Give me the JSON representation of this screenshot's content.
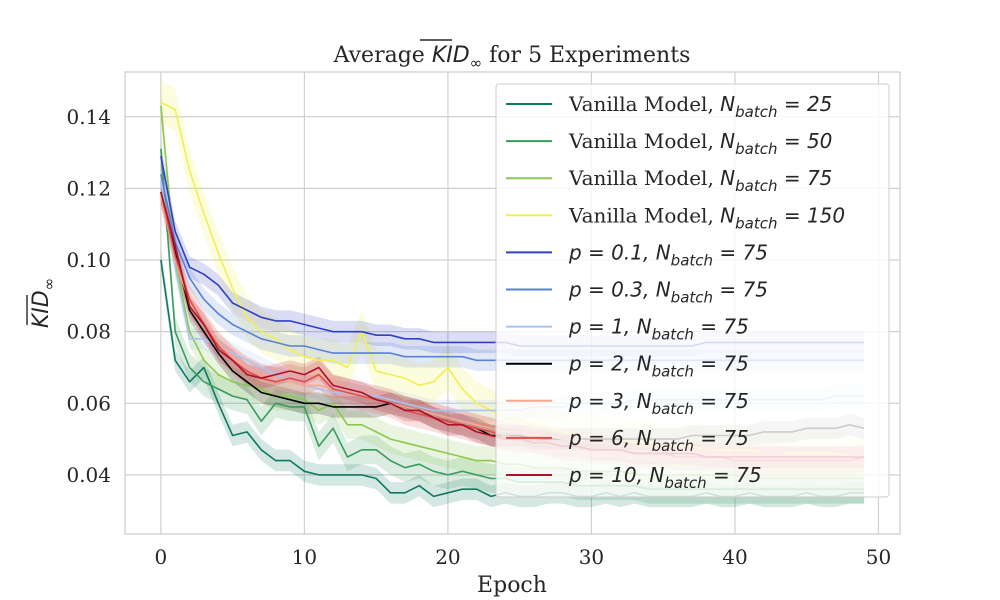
{
  "chart_data": {
    "type": "line",
    "title": {
      "prefix": "Average ",
      "symbol": "KID",
      "subscript": "∞",
      "suffix": " for 5 Experiments"
    },
    "xlabel": "Epoch",
    "ylabel": {
      "symbol": "KID",
      "subscript": "∞"
    },
    "xlim": [
      -2.5,
      51.5
    ],
    "ylim": [
      0.0235,
      0.1525
    ],
    "xticks": [
      0,
      10,
      20,
      30,
      40,
      50
    ],
    "yticks": [
      0.04,
      0.06,
      0.08,
      0.1,
      0.12,
      0.14
    ],
    "ytick_labels": [
      "0.04",
      "0.06",
      "0.08",
      "0.10",
      "0.12",
      "0.14"
    ],
    "grid": true,
    "legend_position": "top-right",
    "x": [
      0,
      1,
      2,
      3,
      4,
      5,
      6,
      7,
      8,
      9,
      10,
      11,
      12,
      13,
      14,
      15,
      16,
      17,
      18,
      19,
      20,
      21,
      22,
      23,
      24,
      25,
      26,
      27,
      28,
      29,
      30,
      31,
      32,
      33,
      34,
      35,
      36,
      37,
      38,
      39,
      40,
      41,
      42,
      43,
      44,
      45,
      46,
      47,
      48,
      49
    ],
    "series": [
      {
        "label": {
          "prefix": "Vanilla Model, ",
          "symbol": "N",
          "sub": "batch",
          "eq": " = 25"
        },
        "color": "#0f7a5c",
        "values": [
          0.1,
          0.072,
          0.066,
          0.07,
          0.06,
          0.051,
          0.052,
          0.047,
          0.044,
          0.044,
          0.041,
          0.04,
          0.04,
          0.04,
          0.04,
          0.039,
          0.035,
          0.035,
          0.037,
          0.034,
          0.035,
          0.036,
          0.036,
          0.034,
          0.035,
          0.034,
          0.034,
          0.035,
          0.035,
          0.034,
          0.034,
          0.035,
          0.034,
          0.035,
          0.034,
          0.034,
          0.034,
          0.034,
          0.035,
          0.034,
          0.034,
          0.035,
          0.034,
          0.034,
          0.034,
          0.035,
          0.034,
          0.034,
          0.035,
          0.035
        ],
        "band": 0.003
      },
      {
        "label": {
          "prefix": "Vanilla Model, ",
          "symbol": "N",
          "sub": "batch",
          "eq": " = 50"
        },
        "color": "#3a9c5a",
        "values": [
          0.131,
          0.08,
          0.07,
          0.066,
          0.064,
          0.062,
          0.061,
          0.055,
          0.06,
          0.059,
          0.059,
          0.048,
          0.053,
          0.045,
          0.047,
          0.047,
          0.044,
          0.042,
          0.043,
          0.041,
          0.04,
          0.041,
          0.04,
          0.039,
          0.039,
          0.038,
          0.038,
          0.038,
          0.038,
          0.037,
          0.037,
          0.037,
          0.037,
          0.037,
          0.036,
          0.036,
          0.036,
          0.036,
          0.036,
          0.036,
          0.036,
          0.036,
          0.036,
          0.036,
          0.036,
          0.036,
          0.036,
          0.036,
          0.036,
          0.036
        ],
        "band": 0.004
      },
      {
        "label": {
          "prefix": "Vanilla Model, ",
          "symbol": "N",
          "sub": "batch",
          "eq": " = 75"
        },
        "color": "#8cc850",
        "values": [
          0.143,
          0.1,
          0.08,
          0.072,
          0.068,
          0.066,
          0.065,
          0.064,
          0.062,
          0.062,
          0.061,
          0.058,
          0.06,
          0.054,
          0.054,
          0.052,
          0.05,
          0.049,
          0.048,
          0.047,
          0.046,
          0.045,
          0.044,
          0.044,
          0.043,
          0.043,
          0.042,
          0.042,
          0.042,
          0.041,
          0.041,
          0.041,
          0.041,
          0.04,
          0.04,
          0.04,
          0.04,
          0.04,
          0.04,
          0.04,
          0.04,
          0.039,
          0.039,
          0.039,
          0.039,
          0.039,
          0.039,
          0.039,
          0.039,
          0.039
        ],
        "band": 0.004
      },
      {
        "label": {
          "prefix": "Vanilla Model, ",
          "symbol": "N",
          "sub": "batch",
          "eq": " = 150"
        },
        "color": "#f0f050",
        "values": [
          0.144,
          0.142,
          0.125,
          0.113,
          0.102,
          0.092,
          0.084,
          0.08,
          0.078,
          0.075,
          0.073,
          0.072,
          0.072,
          0.07,
          0.08,
          0.069,
          0.068,
          0.067,
          0.065,
          0.066,
          0.07,
          0.064,
          0.06,
          0.058,
          0.056,
          0.055,
          0.054,
          0.053,
          0.052,
          0.051,
          0.051,
          0.05,
          0.05,
          0.049,
          0.049,
          0.048,
          0.048,
          0.048,
          0.047,
          0.047,
          0.047,
          0.047,
          0.046,
          0.046,
          0.046,
          0.046,
          0.046,
          0.046,
          0.045,
          0.045
        ],
        "band": 0.006
      },
      {
        "label": {
          "prefix": "",
          "symbol": "p",
          "sub": "",
          "eq": " = 0.1, ",
          "symbol2": "N",
          "sub2": "batch",
          "eq2": " = 75"
        },
        "color": "#3040c0",
        "values": [
          0.129,
          0.108,
          0.098,
          0.096,
          0.093,
          0.088,
          0.086,
          0.084,
          0.083,
          0.083,
          0.082,
          0.081,
          0.08,
          0.08,
          0.08,
          0.079,
          0.079,
          0.078,
          0.078,
          0.077,
          0.077,
          0.077,
          0.077,
          0.077,
          0.077,
          0.076,
          0.076,
          0.076,
          0.076,
          0.076,
          0.076,
          0.076,
          0.076,
          0.076,
          0.076,
          0.076,
          0.076,
          0.076,
          0.077,
          0.077,
          0.077,
          0.077,
          0.077,
          0.077,
          0.077,
          0.077,
          0.077,
          0.077,
          0.077,
          0.077
        ],
        "band": 0.003
      },
      {
        "label": {
          "prefix": "",
          "symbol": "p",
          "sub": "",
          "eq": " = 0.3, ",
          "symbol2": "N",
          "sub2": "batch",
          "eq2": " = 75"
        },
        "color": "#5a80d8",
        "values": [
          0.124,
          0.105,
          0.095,
          0.089,
          0.085,
          0.082,
          0.08,
          0.078,
          0.077,
          0.076,
          0.076,
          0.075,
          0.074,
          0.074,
          0.074,
          0.074,
          0.074,
          0.073,
          0.073,
          0.073,
          0.073,
          0.073,
          0.072,
          0.072,
          0.072,
          0.072,
          0.072,
          0.072,
          0.072,
          0.072,
          0.072,
          0.072,
          0.072,
          0.072,
          0.072,
          0.072,
          0.072,
          0.072,
          0.072,
          0.072,
          0.072,
          0.072,
          0.072,
          0.072,
          0.072,
          0.072,
          0.072,
          0.072,
          0.072,
          0.072
        ],
        "band": 0.003
      },
      {
        "label": {
          "prefix": "",
          "symbol": "p",
          "sub": "",
          "eq": " = 1, ",
          "symbol2": "N",
          "sub2": "batch",
          "eq2": " = 75"
        },
        "color": "#a8c4ef",
        "values": [
          0.122,
          0.098,
          0.078,
          0.078,
          0.076,
          0.074,
          0.072,
          0.07,
          0.068,
          0.066,
          0.065,
          0.064,
          0.063,
          0.063,
          0.062,
          0.062,
          0.061,
          0.06,
          0.059,
          0.058,
          0.058,
          0.058,
          0.058,
          0.058,
          0.058,
          0.058,
          0.059,
          0.059,
          0.059,
          0.06,
          0.06,
          0.06,
          0.06,
          0.061,
          0.061,
          0.061,
          0.061,
          0.061,
          0.061,
          0.061,
          0.061,
          0.061,
          0.061,
          0.061,
          0.061,
          0.061,
          0.061,
          0.062,
          0.062,
          0.062
        ],
        "band": 0.003
      },
      {
        "label": {
          "prefix": "",
          "symbol": "p",
          "sub": "",
          "eq": " = 2, ",
          "symbol2": "N",
          "sub2": "batch",
          "eq2": " = 75"
        },
        "color": "#000000",
        "values": [
          0.119,
          0.102,
          0.086,
          0.08,
          0.074,
          0.069,
          0.066,
          0.063,
          0.062,
          0.061,
          0.06,
          0.06,
          0.059,
          0.059,
          0.059,
          0.059,
          0.06,
          0.059,
          0.058,
          0.056,
          0.055,
          0.054,
          0.053,
          0.051,
          0.051,
          0.051,
          0.05,
          0.05,
          0.05,
          0.05,
          0.05,
          0.05,
          0.05,
          0.05,
          0.05,
          0.05,
          0.05,
          0.051,
          0.051,
          0.051,
          0.051,
          0.051,
          0.052,
          0.052,
          0.052,
          0.053,
          0.053,
          0.053,
          0.054,
          0.053
        ],
        "band": 0.003
      },
      {
        "label": {
          "prefix": "",
          "symbol": "p",
          "sub": "",
          "eq": " = 3, ",
          "symbol2": "N",
          "sub2": "batch",
          "eq2": " = 75"
        },
        "color": "#f4a890",
        "values": [
          0.118,
          0.1,
          0.088,
          0.082,
          0.077,
          0.073,
          0.07,
          0.068,
          0.067,
          0.066,
          0.065,
          0.065,
          0.064,
          0.063,
          0.062,
          0.061,
          0.06,
          0.059,
          0.058,
          0.057,
          0.056,
          0.055,
          0.054,
          0.053,
          0.052,
          0.052,
          0.051,
          0.051,
          0.05,
          0.05,
          0.049,
          0.049,
          0.048,
          0.048,
          0.048,
          0.047,
          0.047,
          0.047,
          0.047,
          0.046,
          0.046,
          0.046,
          0.046,
          0.046,
          0.045,
          0.045,
          0.045,
          0.045,
          0.045,
          0.045
        ],
        "band": 0.003
      },
      {
        "label": {
          "prefix": "",
          "symbol": "p",
          "sub": "",
          "eq": " = 6, ",
          "symbol2": "N",
          "sub2": "batch",
          "eq2": " = 75"
        },
        "color": "#e05048",
        "values": [
          0.119,
          0.101,
          0.089,
          0.082,
          0.076,
          0.072,
          0.069,
          0.067,
          0.066,
          0.067,
          0.066,
          0.068,
          0.064,
          0.063,
          0.062,
          0.061,
          0.06,
          0.058,
          0.057,
          0.056,
          0.055,
          0.054,
          0.053,
          0.052,
          0.051,
          0.05,
          0.05,
          0.049,
          0.048,
          0.048,
          0.047,
          0.047,
          0.047,
          0.046,
          0.046,
          0.046,
          0.045,
          0.045,
          0.045,
          0.045,
          0.044,
          0.044,
          0.044,
          0.044,
          0.044,
          0.044,
          0.044,
          0.044,
          0.044,
          0.045
        ],
        "band": 0.004
      },
      {
        "label": {
          "prefix": "",
          "symbol": "p",
          "sub": "",
          "eq": " = 10, ",
          "symbol2": "N",
          "sub2": "batch",
          "eq2": " = 75"
        },
        "color": "#b0102a",
        "values": [
          0.119,
          0.104,
          0.087,
          0.082,
          0.075,
          0.072,
          0.068,
          0.067,
          0.068,
          0.069,
          0.068,
          0.07,
          0.065,
          0.064,
          0.063,
          0.061,
          0.06,
          0.058,
          0.058,
          0.056,
          0.054,
          0.054,
          0.052,
          0.051,
          0.05,
          0.05,
          0.049,
          0.049,
          0.048,
          0.048,
          0.047,
          0.047,
          0.047,
          0.046,
          0.046,
          0.046,
          0.046,
          0.046,
          0.045,
          0.045,
          0.045,
          0.045,
          0.045,
          0.045,
          0.045,
          0.045,
          0.045,
          0.045,
          0.045,
          0.045
        ],
        "band": 0.003
      }
    ]
  }
}
